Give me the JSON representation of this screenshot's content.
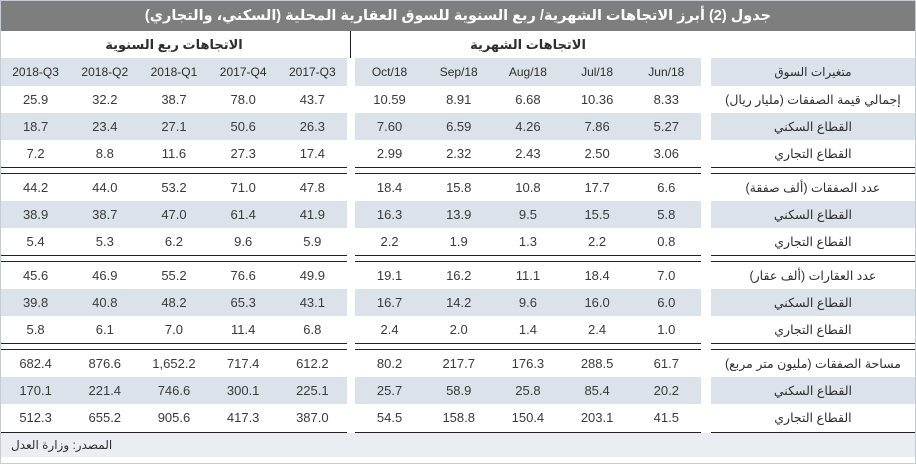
{
  "title": "جدول (2) أبرز الاتجاهات الشهرية/ ربع السنوية للسوق العقارية المحلية (السكني، والتجاري)",
  "section_headers": {
    "quarterly": "الاتجاهات ربع السنوية",
    "monthly": "الاتجاهات الشهرية"
  },
  "columns": {
    "quarterly": [
      "2018-Q3",
      "2018-Q2",
      "2018-Q1",
      "2017-Q4",
      "2017-Q3"
    ],
    "monthly": [
      "Oct/18",
      "Sep/18",
      "Aug/18",
      "Jul/18",
      "Jun/18"
    ],
    "variables": "متغيرات السوق"
  },
  "table": {
    "groups": [
      {
        "rows": [
          {
            "label": "إجمالي قيمة الصفقات (مليار ريال)",
            "quarterly": [
              "25.9",
              "32.2",
              "38.7",
              "78.0",
              "43.7"
            ],
            "monthly": [
              "10.59",
              "8.91",
              "6.68",
              "10.36",
              "8.33"
            ]
          },
          {
            "label": "القطاع السكني",
            "quarterly": [
              "18.7",
              "23.4",
              "27.1",
              "50.6",
              "26.3"
            ],
            "monthly": [
              "7.60",
              "6.59",
              "4.26",
              "7.86",
              "5.27"
            ]
          },
          {
            "label": "القطاع التجاري",
            "quarterly": [
              "7.2",
              "8.8",
              "11.6",
              "27.3",
              "17.4"
            ],
            "monthly": [
              "2.99",
              "2.32",
              "2.43",
              "2.50",
              "3.06"
            ]
          }
        ]
      },
      {
        "rows": [
          {
            "label": "عدد الصفقات (ألف صفقة)",
            "quarterly": [
              "44.2",
              "44.0",
              "53.2",
              "71.0",
              "47.8"
            ],
            "monthly": [
              "18.4",
              "15.8",
              "10.8",
              "17.7",
              "6.6"
            ]
          },
          {
            "label": "القطاع السكني",
            "quarterly": [
              "38.9",
              "38.7",
              "47.0",
              "61.4",
              "41.9"
            ],
            "monthly": [
              "16.3",
              "13.9",
              "9.5",
              "15.5",
              "5.8"
            ]
          },
          {
            "label": "القطاع التجاري",
            "quarterly": [
              "5.4",
              "5.3",
              "6.2",
              "9.6",
              "5.9"
            ],
            "monthly": [
              "2.2",
              "1.9",
              "1.3",
              "2.2",
              "0.8"
            ]
          }
        ]
      },
      {
        "rows": [
          {
            "label": "عدد العقارات (ألف عقار)",
            "quarterly": [
              "45.6",
              "46.9",
              "55.2",
              "76.6",
              "49.9"
            ],
            "monthly": [
              "19.1",
              "16.2",
              "11.1",
              "18.4",
              "7.0"
            ]
          },
          {
            "label": "القطاع السكني",
            "quarterly": [
              "39.8",
              "40.8",
              "48.2",
              "65.3",
              "43.1"
            ],
            "monthly": [
              "16.7",
              "14.2",
              "9.6",
              "16.0",
              "6.0"
            ]
          },
          {
            "label": "القطاع التجاري",
            "quarterly": [
              "5.8",
              "6.1",
              "7.0",
              "11.4",
              "6.8"
            ],
            "monthly": [
              "2.4",
              "2.0",
              "1.4",
              "2.4",
              "1.0"
            ]
          }
        ]
      },
      {
        "rows": [
          {
            "label": "مساحة الصفقات (مليون متر مربع)",
            "quarterly": [
              "682.4",
              "876.6",
              "1,652.2",
              "717.4",
              "612.2"
            ],
            "monthly": [
              "80.2",
              "217.7",
              "176.3",
              "288.5",
              "61.7"
            ]
          },
          {
            "label": "القطاع السكني",
            "quarterly": [
              "170.1",
              "221.4",
              "746.6",
              "300.1",
              "225.1"
            ],
            "monthly": [
              "25.7",
              "58.9",
              "25.8",
              "85.4",
              "20.2"
            ]
          },
          {
            "label": "القطاع التجاري",
            "quarterly": [
              "512.3",
              "655.2",
              "905.6",
              "417.3",
              "387.0"
            ],
            "monthly": [
              "54.5",
              "158.8",
              "150.4",
              "203.1",
              "41.5"
            ]
          }
        ]
      }
    ]
  },
  "footer": {
    "source_label": "المصدر: وزارة العدل"
  },
  "colors": {
    "title_bar": "#7e7e7e",
    "shaded_row": "#dbe2e9",
    "footer_row": "#eaeef3",
    "separator_line": "#222222"
  }
}
